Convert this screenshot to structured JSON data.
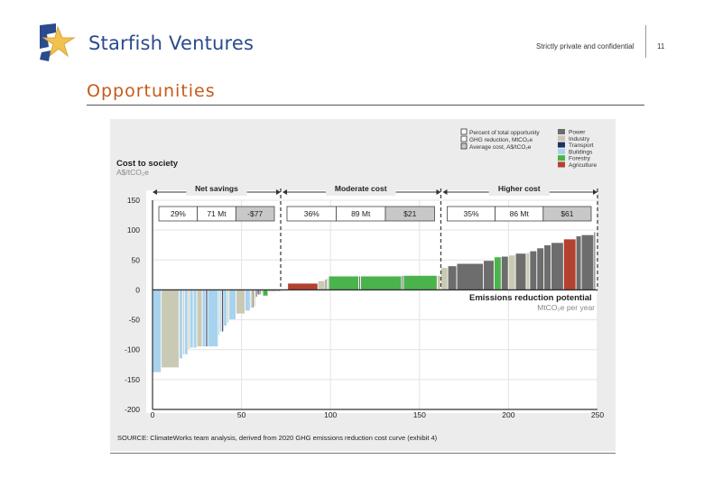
{
  "header": {
    "company": "Starfish Ventures",
    "confidential": "Strictly private and confidential",
    "page_number": "11"
  },
  "section_title": "Opportunities",
  "colors": {
    "power": "#6d6d6d",
    "industry": "#c9c9b4",
    "transport": "#1f3260",
    "buildings": "#a8d3ee",
    "forestry": "#4bb34b",
    "agriculture": "#b3412f",
    "accent": "#c55a1b",
    "brand": "#2a4b8c"
  },
  "chart_data": {
    "type": "bar",
    "title": "Cost to society",
    "ylabel": "A$/tCO₂e",
    "xlabel": "Emissions reduction potential",
    "xunit": "MtCO₂e per year",
    "xlim": [
      0,
      250
    ],
    "ylim": [
      -200,
      150
    ],
    "xticks": [
      "0",
      "50",
      "100",
      "150",
      "200",
      "250"
    ],
    "yticks": [
      "150",
      "100",
      "50",
      "0",
      "-50",
      "-100",
      "-150",
      "-200"
    ],
    "legend": {
      "key_items": [
        "Percent of total opportunity",
        "GHG reduction, MtCO₂e",
        "Average cost, A$/tCO₂e"
      ],
      "sectors": [
        "Power",
        "Industry",
        "Transport",
        "Buildings",
        "Forestry",
        "Agriculture"
      ]
    },
    "segments": [
      {
        "label": "Net savings",
        "x_range": [
          0,
          72
        ],
        "percent": "29%",
        "mt": "71 Mt",
        "cost": "-$77"
      },
      {
        "label": "Moderate cost",
        "x_range": [
          72,
          162
        ],
        "percent": "36%",
        "mt": "89 Mt",
        "cost": "$21"
      },
      {
        "label": "Higher cost",
        "x_range": [
          162,
          250
        ],
        "percent": "35%",
        "mt": "86 Mt",
        "cost": "$61"
      }
    ],
    "bars": [
      {
        "x0": 0,
        "x1": 5,
        "y": -138,
        "sector": "buildings"
      },
      {
        "x0": 5,
        "x1": 15,
        "y": -130,
        "sector": "industry"
      },
      {
        "x0": 15,
        "x1": 17,
        "y": -115,
        "sector": "buildings"
      },
      {
        "x0": 17,
        "x1": 18,
        "y": -108,
        "sector": "industry"
      },
      {
        "x0": 18,
        "x1": 20,
        "y": -108,
        "sector": "buildings"
      },
      {
        "x0": 20,
        "x1": 21,
        "y": -100,
        "sector": "industry"
      },
      {
        "x0": 21,
        "x1": 23,
        "y": -97,
        "sector": "buildings"
      },
      {
        "x0": 23,
        "x1": 25,
        "y": -97,
        "sector": "buildings"
      },
      {
        "x0": 25,
        "x1": 28,
        "y": -95,
        "sector": "industry"
      },
      {
        "x0": 28,
        "x1": 30,
        "y": -95,
        "sector": "buildings"
      },
      {
        "x0": 30,
        "x1": 31,
        "y": -95,
        "sector": "transport"
      },
      {
        "x0": 31,
        "x1": 37,
        "y": -95,
        "sector": "buildings"
      },
      {
        "x0": 37,
        "x1": 38,
        "y": -75,
        "sector": "buildings"
      },
      {
        "x0": 38,
        "x1": 39,
        "y": -70,
        "sector": "industry"
      },
      {
        "x0": 39,
        "x1": 40,
        "y": -70,
        "sector": "transport"
      },
      {
        "x0": 40,
        "x1": 42,
        "y": -60,
        "sector": "buildings"
      },
      {
        "x0": 42,
        "x1": 43,
        "y": -55,
        "sector": "industry"
      },
      {
        "x0": 43,
        "x1": 47,
        "y": -50,
        "sector": "buildings"
      },
      {
        "x0": 47,
        "x1": 52,
        "y": -40,
        "sector": "industry"
      },
      {
        "x0": 52,
        "x1": 55,
        "y": -35,
        "sector": "buildings"
      },
      {
        "x0": 55,
        "x1": 56,
        "y": -30,
        "sector": "industry"
      },
      {
        "x0": 56,
        "x1": 57,
        "y": -30,
        "sector": "power"
      },
      {
        "x0": 57,
        "x1": 58,
        "y": -28,
        "sector": "industry"
      },
      {
        "x0": 58,
        "x1": 59,
        "y": -12,
        "sector": "power"
      },
      {
        "x0": 59,
        "x1": 60,
        "y": -8,
        "sector": "transport"
      },
      {
        "x0": 60,
        "x1": 61,
        "y": -8,
        "sector": "power"
      },
      {
        "x0": 61,
        "x1": 62,
        "y": -6,
        "sector": "industry"
      },
      {
        "x0": 62,
        "x1": 65,
        "y": -10,
        "sector": "forestry"
      },
      {
        "x0": 65,
        "x1": 70,
        "y": -3,
        "sector": "industry"
      },
      {
        "x0": 70,
        "x1": 72,
        "y": -2,
        "sector": "power"
      },
      {
        "x0": 76,
        "x1": 93,
        "y": 11,
        "sector": "agriculture"
      },
      {
        "x0": 93,
        "x1": 97,
        "y": 15,
        "sector": "industry"
      },
      {
        "x0": 97,
        "x1": 98,
        "y": 18,
        "sector": "power"
      },
      {
        "x0": 98,
        "x1": 99,
        "y": 20,
        "sector": "industry"
      },
      {
        "x0": 99,
        "x1": 116,
        "y": 23,
        "sector": "forestry"
      },
      {
        "x0": 116,
        "x1": 117,
        "y": 23,
        "sector": "power"
      },
      {
        "x0": 117,
        "x1": 140,
        "y": 23,
        "sector": "forestry"
      },
      {
        "x0": 140,
        "x1": 141,
        "y": 24,
        "sector": "power"
      },
      {
        "x0": 141,
        "x1": 160,
        "y": 24,
        "sector": "forestry"
      },
      {
        "x0": 160,
        "x1": 162,
        "y": 24,
        "sector": "industry"
      },
      {
        "x0": 162,
        "x1": 166,
        "y": 37,
        "sector": "industry"
      },
      {
        "x0": 166,
        "x1": 171,
        "y": 40,
        "sector": "power"
      },
      {
        "x0": 171,
        "x1": 186,
        "y": 44,
        "sector": "power"
      },
      {
        "x0": 186,
        "x1": 192,
        "y": 49,
        "sector": "power"
      },
      {
        "x0": 192,
        "x1": 196,
        "y": 55,
        "sector": "forestry"
      },
      {
        "x0": 196,
        "x1": 200,
        "y": 56,
        "sector": "power"
      },
      {
        "x0": 200,
        "x1": 204,
        "y": 58,
        "sector": "industry"
      },
      {
        "x0": 204,
        "x1": 210,
        "y": 61,
        "sector": "power"
      },
      {
        "x0": 210,
        "x1": 212,
        "y": 62,
        "sector": "industry"
      },
      {
        "x0": 212,
        "x1": 216,
        "y": 65,
        "sector": "power"
      },
      {
        "x0": 216,
        "x1": 220,
        "y": 70,
        "sector": "power"
      },
      {
        "x0": 220,
        "x1": 224,
        "y": 75,
        "sector": "power"
      },
      {
        "x0": 224,
        "x1": 231,
        "y": 79,
        "sector": "power"
      },
      {
        "x0": 231,
        "x1": 238,
        "y": 85,
        "sector": "agriculture"
      },
      {
        "x0": 238,
        "x1": 241,
        "y": 90,
        "sector": "power"
      },
      {
        "x0": 241,
        "x1": 248,
        "y": 92,
        "sector": "power"
      },
      {
        "x0": 248,
        "x1": 249,
        "y": 97,
        "sector": "power"
      }
    ],
    "source": "SOURCE: ClimateWorks team analysis, derived from 2020 GHG emissions reduction cost curve (exhibit 4)"
  }
}
